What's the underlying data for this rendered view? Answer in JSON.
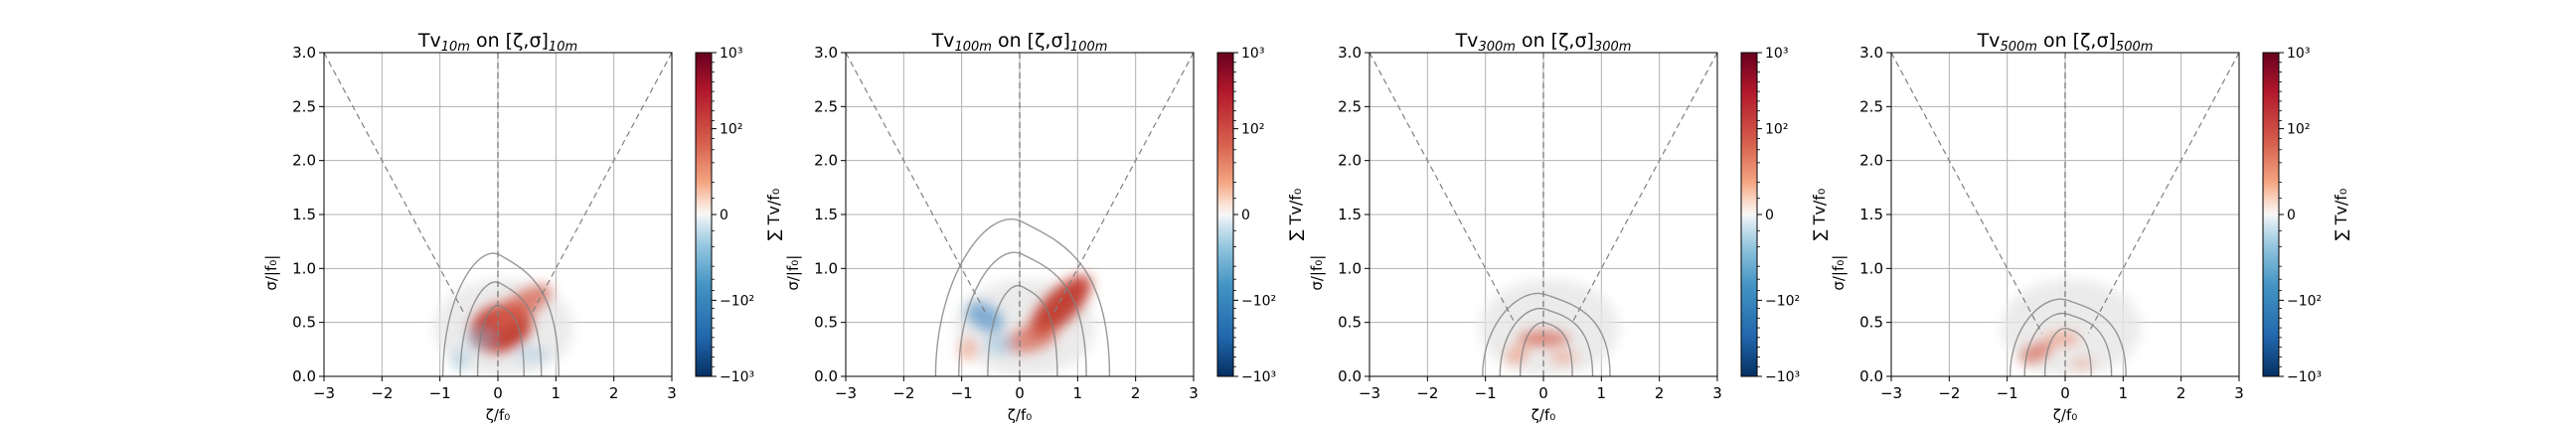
{
  "chart_data": [
    {
      "type": "heatmap",
      "title": "Tv$_{10m}$ on $[\\zeta,\\sigma]_{10m}$",
      "title_main": "Tv",
      "title_sub": "10m",
      "title_mid": " on [ζ,σ]",
      "title_end": "10m",
      "xlabel": "ζ/f₀",
      "ylabel": "σ/|f₀|",
      "xlim": [
        -3,
        3
      ],
      "ylim": [
        0,
        3
      ],
      "xticks": [
        "−3",
        "−2",
        "−1",
        "0",
        "1",
        "2",
        "3"
      ],
      "yticks": [
        "0.0",
        "0.5",
        "1.0",
        "1.5",
        "2.0",
        "2.5",
        "3.0"
      ],
      "grid": true,
      "reference_lines": [
        {
          "kind": "diagonal",
          "from": [
            -3,
            3
          ],
          "to": [
            -0.6,
            0.6
          ]
        },
        {
          "kind": "diagonal",
          "from": [
            3,
            3
          ],
          "to": [
            0.6,
            0.6
          ]
        },
        {
          "kind": "vertical",
          "x": 0
        }
      ],
      "blobs": [
        {
          "cx": 0.05,
          "cy": 0.45,
          "rx": 0.55,
          "ry": 0.22,
          "rot": -20,
          "val": 0.85
        },
        {
          "cx": 0.4,
          "cy": 0.65,
          "rx": 0.6,
          "ry": 0.12,
          "rot": -32,
          "val": 0.6
        },
        {
          "cx": -0.3,
          "cy": 0.35,
          "rx": 0.25,
          "ry": 0.1,
          "rot": 0,
          "val": -0.35
        },
        {
          "cx": -0.65,
          "cy": 0.15,
          "rx": 0.15,
          "ry": 0.1,
          "rot": 0,
          "val": -0.3
        },
        {
          "cx": 0.6,
          "cy": 0.2,
          "rx": 0.3,
          "ry": 0.08,
          "rot": 0,
          "val": -0.2
        }
      ],
      "contours": [
        {
          "cy": 0.45,
          "w": 0.4,
          "h": 0.25
        },
        {
          "cy": 0.5,
          "w": 0.7,
          "h": 0.45
        },
        {
          "cy": 0.6,
          "w": 1.0,
          "h": 0.65
        }
      ],
      "colorbar": {
        "label": "∑ Tv/f₀",
        "ticks": [
          "10³",
          "10²",
          "0",
          "−10²",
          "−10³"
        ],
        "colormap": "RdBu_r"
      }
    },
    {
      "type": "heatmap",
      "title": "Tv$_{100m}$ on $[\\zeta,\\sigma]_{100m}$",
      "title_main": "Tv",
      "title_sub": "100m",
      "title_mid": " on [ζ,σ]",
      "title_end": "100m",
      "xlabel": "ζ/f₀",
      "ylabel": "σ/|f₀|",
      "xlim": [
        -3,
        3
      ],
      "ylim": [
        0,
        3
      ],
      "xticks": [
        "−3",
        "−2",
        "−1",
        "0",
        "1",
        "2",
        "3"
      ],
      "yticks": [
        "0.0",
        "0.5",
        "1.0",
        "1.5",
        "2.0",
        "2.5",
        "3.0"
      ],
      "grid": true,
      "reference_lines": [
        {
          "kind": "diagonal",
          "from": [
            -3,
            3
          ],
          "to": [
            -0.6,
            0.6
          ]
        },
        {
          "kind": "diagonal",
          "from": [
            3,
            3
          ],
          "to": [
            0.6,
            0.6
          ]
        },
        {
          "kind": "vertical",
          "x": 0
        }
      ],
      "blobs": [
        {
          "cx": 0.7,
          "cy": 0.65,
          "rx": 0.7,
          "ry": 0.15,
          "rot": -45,
          "val": 0.9
        },
        {
          "cx": 0.2,
          "cy": 0.35,
          "rx": 0.45,
          "ry": 0.12,
          "rot": -15,
          "val": 0.55
        },
        {
          "cx": -0.6,
          "cy": 0.55,
          "rx": 0.35,
          "ry": 0.12,
          "rot": 30,
          "val": -0.5
        },
        {
          "cx": -0.35,
          "cy": 0.3,
          "rx": 0.25,
          "ry": 0.1,
          "rot": 0,
          "val": -0.35
        },
        {
          "cx": -0.9,
          "cy": 0.25,
          "rx": 0.15,
          "ry": 0.1,
          "rot": 0,
          "val": 0.4
        }
      ],
      "contours": [
        {
          "cy": 0.55,
          "w": 0.6,
          "h": 0.35
        },
        {
          "cy": 0.65,
          "w": 1.1,
          "h": 0.6
        },
        {
          "cy": 0.75,
          "w": 1.5,
          "h": 0.85
        }
      ],
      "colorbar": {
        "label": "∑ Tv/f₀",
        "ticks": [
          "10³",
          "10²",
          "0",
          "−10²",
          "−10³"
        ],
        "colormap": "RdBu_r"
      }
    },
    {
      "type": "heatmap",
      "title": "Tv$_{300m}$ on $[\\zeta,\\sigma]_{300m}$",
      "title_main": "Tv",
      "title_sub": "300m",
      "title_mid": " on [ζ,σ]",
      "title_end": "300m",
      "xlabel": "ζ/f₀",
      "ylabel": "σ/|f₀|",
      "xlim": [
        -3,
        3
      ],
      "ylim": [
        0,
        3
      ],
      "xticks": [
        "−3",
        "−2",
        "−1",
        "0",
        "1",
        "2",
        "3"
      ],
      "yticks": [
        "0.0",
        "0.5",
        "1.0",
        "1.5",
        "2.0",
        "2.5",
        "3.0"
      ],
      "grid": true,
      "reference_lines": [
        {
          "kind": "diagonal",
          "from": [
            -3,
            3
          ],
          "to": [
            -0.5,
            0.5
          ]
        },
        {
          "kind": "diagonal",
          "from": [
            3,
            3
          ],
          "to": [
            0.5,
            0.5
          ]
        },
        {
          "kind": "vertical",
          "x": 0
        }
      ],
      "blobs": [
        {
          "cx": 0.0,
          "cy": 0.35,
          "rx": 0.45,
          "ry": 0.07,
          "rot": 0,
          "val": 0.6
        },
        {
          "cx": -0.45,
          "cy": 0.2,
          "rx": 0.2,
          "ry": 0.08,
          "rot": -25,
          "val": 0.45
        },
        {
          "cx": 0.35,
          "cy": 0.18,
          "rx": 0.25,
          "ry": 0.06,
          "rot": 0,
          "val": 0.35
        }
      ],
      "contours": [
        {
          "cy": 0.35,
          "w": 0.45,
          "h": 0.18
        },
        {
          "cy": 0.38,
          "w": 0.8,
          "h": 0.3
        },
        {
          "cy": 0.42,
          "w": 1.1,
          "h": 0.42
        }
      ],
      "colorbar": {
        "label": "∑ Tv/f₀",
        "ticks": [
          "10³",
          "10²",
          "0",
          "−10²",
          "−10³"
        ],
        "colormap": "RdBu_r"
      }
    },
    {
      "type": "heatmap",
      "title": "Tv$_{500m}$ on $[\\zeta,\\sigma]_{500m}$",
      "title_main": "Tv",
      "title_sub": "500m",
      "title_mid": " on [ζ,σ]",
      "title_end": "500m",
      "xlabel": "ζ/f₀",
      "ylabel": "σ/|f₀|",
      "xlim": [
        -3,
        3
      ],
      "ylim": [
        0,
        3
      ],
      "xticks": [
        "−3",
        "−2",
        "−1",
        "0",
        "1",
        "2",
        "3"
      ],
      "yticks": [
        "0.0",
        "0.5",
        "1.0",
        "1.5",
        "2.0",
        "2.5",
        "3.0"
      ],
      "grid": true,
      "reference_lines": [
        {
          "kind": "diagonal",
          "from": [
            -3,
            3
          ],
          "to": [
            -0.4,
            0.4
          ]
        },
        {
          "kind": "diagonal",
          "from": [
            3,
            3
          ],
          "to": [
            0.4,
            0.4
          ]
        },
        {
          "kind": "vertical",
          "x": 0
        }
      ],
      "blobs": [
        {
          "cx": -0.5,
          "cy": 0.22,
          "rx": 0.3,
          "ry": 0.08,
          "rot": -25,
          "val": 0.55
        },
        {
          "cx": -0.05,
          "cy": 0.35,
          "rx": 0.3,
          "ry": 0.06,
          "rot": 0,
          "val": 0.5
        },
        {
          "cx": 0.3,
          "cy": 0.12,
          "rx": 0.2,
          "ry": 0.05,
          "rot": 0,
          "val": 0.3
        }
      ],
      "contours": [
        {
          "cy": 0.32,
          "w": 0.4,
          "h": 0.15
        },
        {
          "cy": 0.36,
          "w": 0.75,
          "h": 0.27
        },
        {
          "cy": 0.4,
          "w": 1.0,
          "h": 0.38
        }
      ],
      "colorbar": {
        "label": "∑ Tv/f₀",
        "ticks": [
          "10³",
          "10²",
          "0",
          "−10²",
          "−10³"
        ],
        "colormap": "RdBu_r"
      }
    }
  ]
}
